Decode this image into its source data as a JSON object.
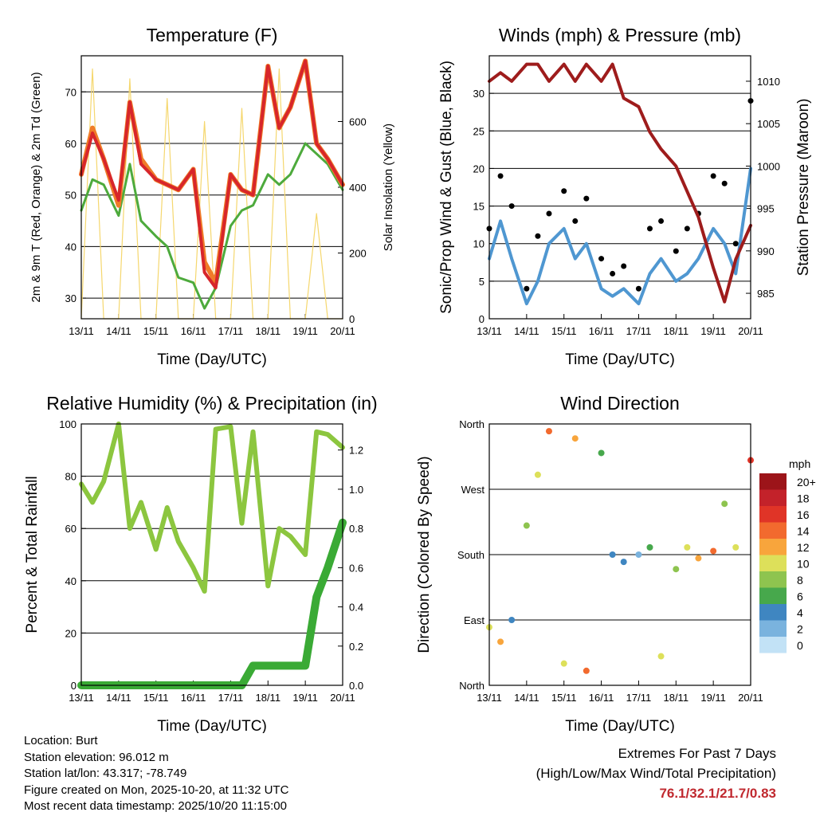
{
  "chart_data": [
    {
      "type": "line",
      "title": "Temperature (F)",
      "xlabel": "Time (Day/UTC)",
      "ylabel": "2m & 9m T (Red, Orange) & 2m Td (Green)",
      "ylabel_right": "Solar Insolation (Yellow)",
      "x_ticks": [
        "13/11",
        "14/11",
        "15/11",
        "16/11",
        "17/11",
        "18/11",
        "19/11",
        "20/11"
      ],
      "ylim": [
        26,
        77
      ],
      "y_ticks": [
        30,
        40,
        50,
        60,
        70
      ],
      "ylim_right": [
        0,
        800
      ],
      "y_ticks_right": [
        0,
        200,
        400,
        600
      ],
      "grid": true,
      "colors": {
        "t2m": "#d7262b",
        "t9m": "#f07c28",
        "td2m": "#4daa3c",
        "solar": "#f5d76e"
      },
      "x": [
        0,
        0.3,
        0.6,
        1.0,
        1.3,
        1.6,
        2.0,
        2.3,
        2.6,
        3.0,
        3.3,
        3.6,
        4.0,
        4.3,
        4.6,
        5.0,
        5.3,
        5.6,
        6.0,
        6.3,
        6.6,
        7.0
      ],
      "series": [
        {
          "name": "2m T",
          "values": [
            54,
            62,
            57,
            49,
            68,
            56,
            53,
            52,
            51,
            55,
            35,
            32,
            54,
            51,
            50,
            75,
            63,
            67,
            76,
            60,
            57,
            52
          ]
        },
        {
          "name": "9m T",
          "values": [
            54,
            63,
            57,
            48,
            68,
            57,
            53,
            52,
            51,
            55,
            37,
            33,
            54,
            51,
            50,
            75,
            63,
            67,
            76,
            60,
            57,
            52
          ]
        },
        {
          "name": "2m Td",
          "values": [
            47,
            53,
            52,
            46,
            56,
            45,
            42,
            40,
            34,
            33,
            28,
            32,
            44,
            47,
            48,
            54,
            52,
            54,
            60,
            58,
            56,
            51
          ]
        },
        {
          "name": "Solar",
          "values": [
            0,
            760,
            0,
            0,
            730,
            0,
            0,
            670,
            0,
            0,
            600,
            0,
            0,
            640,
            0,
            0,
            760,
            0,
            0,
            320,
            0,
            0
          ]
        }
      ]
    },
    {
      "type": "scatter",
      "title": "Winds (mph) & Pressure (mb)",
      "xlabel": "Time (Day/UTC)",
      "ylabel": "Sonic/Prop Wind & Gust (Blue, Black)",
      "ylabel_right": "Station Pressure (Maroon)",
      "x_ticks": [
        "13/11",
        "14/11",
        "15/11",
        "16/11",
        "17/11",
        "18/11",
        "19/11",
        "20/11"
      ],
      "ylim": [
        0,
        35
      ],
      "y_ticks": [
        0,
        5,
        10,
        15,
        20,
        25,
        30
      ],
      "ylim_right": [
        982,
        1013
      ],
      "y_ticks_right": [
        985,
        990,
        995,
        1000,
        1005,
        1010
      ],
      "grid": true,
      "colors": {
        "wind": "#4f97d1",
        "gust": "#000000",
        "pressure": "#9e1c1c"
      },
      "x": [
        0,
        0.3,
        0.6,
        1.0,
        1.3,
        1.6,
        2.0,
        2.3,
        2.6,
        3.0,
        3.3,
        3.6,
        4.0,
        4.3,
        4.6,
        5.0,
        5.3,
        5.6,
        6.0,
        6.3,
        6.6,
        7.0
      ],
      "series": [
        {
          "name": "Wind",
          "values": [
            8,
            13,
            8,
            2,
            5,
            10,
            12,
            8,
            10,
            4,
            3,
            4,
            2,
            6,
            8,
            5,
            6,
            8,
            12,
            10,
            6,
            20
          ]
        },
        {
          "name": "Gust",
          "values": [
            12,
            19,
            15,
            4,
            11,
            14,
            17,
            13,
            16,
            8,
            6,
            7,
            4,
            12,
            13,
            9,
            12,
            14,
            19,
            18,
            10,
            29
          ]
        },
        {
          "name": "Pressure",
          "values": [
            1010,
            1011,
            1010,
            1012,
            1012,
            1010,
            1012,
            1010,
            1012,
            1010,
            1012,
            1008,
            1007,
            1004,
            1002,
            1000,
            997,
            994,
            988,
            984,
            989,
            993
          ]
        }
      ]
    },
    {
      "type": "line",
      "title": "Relative Humidity (%) & Precipitation (in)",
      "xlabel": "Time (Day/UTC)",
      "ylabel": "Percent & Total Rainfall",
      "x_ticks": [
        "13/11",
        "14/11",
        "15/11",
        "16/11",
        "17/11",
        "18/11",
        "19/11",
        "20/11"
      ],
      "ylim": [
        0,
        100
      ],
      "y_ticks": [
        0,
        20,
        40,
        60,
        80,
        100
      ],
      "ylim_right": [
        0,
        1.333
      ],
      "y_ticks_right": [
        "0.0",
        "0.2",
        "0.4",
        "0.6",
        "0.8",
        "1.0",
        "1.2"
      ],
      "grid": true,
      "colors": {
        "rh": "#8cc63f",
        "precip": "#3aaa35"
      },
      "x": [
        0,
        0.3,
        0.6,
        1.0,
        1.3,
        1.6,
        2.0,
        2.3,
        2.6,
        3.0,
        3.3,
        3.6,
        4.0,
        4.3,
        4.6,
        5.0,
        5.3,
        5.6,
        6.0,
        6.3,
        6.6,
        7.0
      ],
      "series": [
        {
          "name": "RH",
          "values": [
            77,
            70,
            78,
            100,
            60,
            70,
            52,
            68,
            55,
            45,
            36,
            98,
            99,
            62,
            97,
            38,
            60,
            57,
            50,
            97,
            96,
            91
          ]
        },
        {
          "name": "Total Precip",
          "values": [
            0,
            0,
            0,
            0,
            0,
            0,
            0,
            0,
            0,
            0,
            0,
            0,
            0,
            0,
            0.1,
            0.1,
            0.1,
            0.1,
            0.1,
            0.45,
            0.6,
            0.83
          ]
        }
      ]
    },
    {
      "type": "scatter",
      "title": "Wind Direction",
      "xlabel": "Time (Day/UTC)",
      "ylabel": "Direction (Colored By Speed)",
      "x_ticks": [
        "13/11",
        "14/11",
        "15/11",
        "16/11",
        "17/11",
        "18/11",
        "19/11",
        "20/11"
      ],
      "y_ticks": [
        "North",
        "East",
        "South",
        "West",
        "North"
      ],
      "ylim": [
        0,
        360
      ],
      "grid": true,
      "legend_title": "mph",
      "legend_labels": [
        "20+",
        "18",
        "16",
        "14",
        "12",
        "10",
        "8",
        "6",
        "4",
        "2",
        "0"
      ],
      "legend_colors": [
        "#9c1419",
        "#c3222a",
        "#e03427",
        "#f26a2e",
        "#f8a53c",
        "#dde05a",
        "#8ec44f",
        "#47a84c",
        "#3f86c1",
        "#7ab3de",
        "#c2e2f6"
      ],
      "x": [
        0,
        0.3,
        0.6,
        1.0,
        1.3,
        1.6,
        2.0,
        2.3,
        2.6,
        3.0,
        3.3,
        3.6,
        4.0,
        4.3,
        4.6,
        5.0,
        5.3,
        5.6,
        6.0,
        6.3,
        6.6,
        7.0
      ],
      "series": [
        {
          "name": "Direction",
          "values": [
            80,
            60,
            90,
            220,
            290,
            350,
            30,
            340,
            20,
            320,
            180,
            170,
            180,
            190,
            40,
            160,
            190,
            175,
            185,
            250,
            190,
            310
          ]
        },
        {
          "name": "Speed",
          "values": [
            10,
            12,
            4,
            8,
            10,
            15,
            10,
            12,
            14,
            6,
            4,
            4,
            3,
            6,
            10,
            8,
            10,
            12,
            14,
            8,
            10,
            17
          ]
        }
      ]
    }
  ],
  "footer": {
    "location": "Location: Burt",
    "elevation": "Station elevation: 96.012 m",
    "latlon": "Station lat/lon: 43.317; -78.749",
    "created": "Figure created on Mon, 2025-10-20, at 11:32 UTC",
    "recent": "Most recent data timestamp: 2025/10/20 11:15:00"
  },
  "extremes": {
    "title": "Extremes For Past 7 Days",
    "subtitle": "(High/Low/Max Wind/Total Precipitation)",
    "values": "76.1/32.1/21.7/0.83"
  }
}
